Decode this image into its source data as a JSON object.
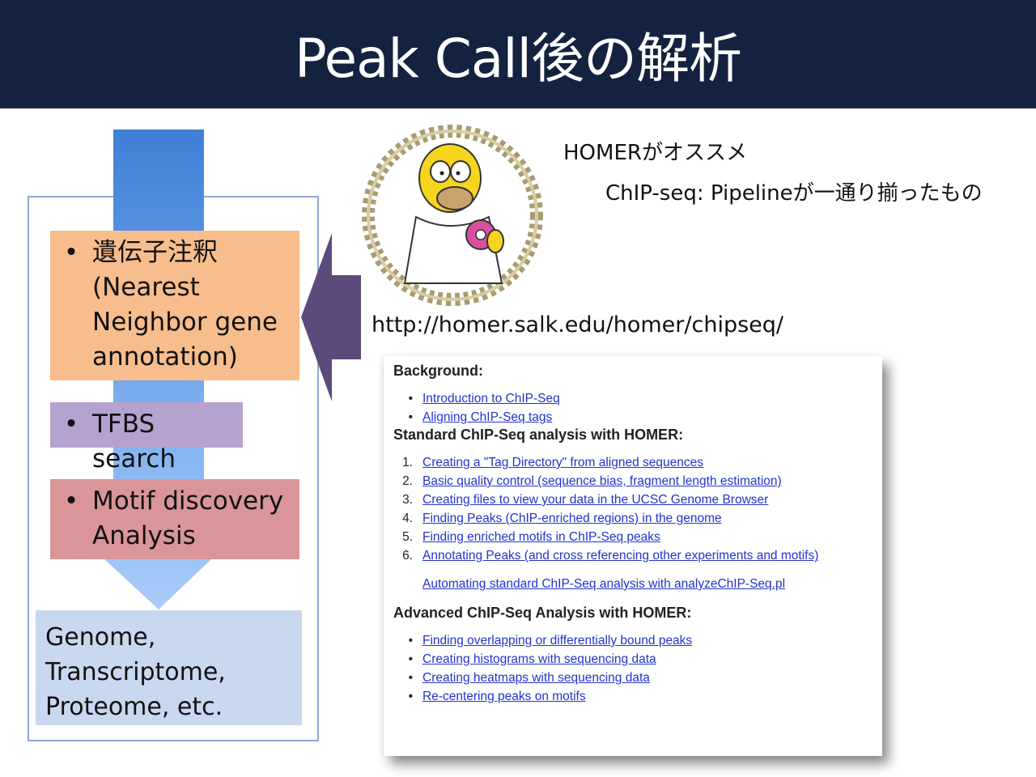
{
  "slide": {
    "title": "Peak Call後の解析"
  },
  "workflow": {
    "steps": [
      {
        "bullet": "•",
        "text": "遺伝子注釈 (Nearest Neighbor gene annotation)",
        "color": "#f8bd8d"
      },
      {
        "bullet": "•",
        "text": "TFBS search",
        "color": "#b6a2cf"
      },
      {
        "bullet": "•",
        "text": "Motif discovery Analysis",
        "color": "#d99597"
      }
    ],
    "result": "Genome, Transcriptome, Proteome, etc.",
    "colors": {
      "arrow": "#4f86d6",
      "result_bg": "#c8d8ef",
      "pointer_arrow": "#5c4a7a"
    }
  },
  "homer": {
    "logo_icon": "homer-simpson-dna-logo",
    "recommend": "HOMERがオススメ",
    "pipeline_note": "ChIP-seq: Pipelineが一通り揃ったもの",
    "url": "http://homer.salk.edu/homer/chipseq/"
  },
  "webpage": {
    "background_heading": "Background:",
    "background_links": [
      "Introduction to ChIP-Seq",
      "Aligning ChIP-Seq tags"
    ],
    "standard_heading": "Standard ChIP-Seq analysis with HOMER:",
    "standard_links": [
      {
        "num": "1.",
        "text": "Creating a \"Tag Directory\" from aligned sequences"
      },
      {
        "num": "2.",
        "text": "Basic quality control (sequence bias, fragment length estimation)"
      },
      {
        "num": "3.",
        "text": "Creating files to view your data in the UCSC Genome Browser"
      },
      {
        "num": "4.",
        "text": "Finding Peaks (ChIP-enriched regions) in the genome"
      },
      {
        "num": "5.",
        "text": "Finding enriched motifs in ChIP-Seq peaks"
      },
      {
        "num": "6.",
        "text": "Annotating Peaks (and cross referencing other experiments and motifs)"
      }
    ],
    "automating_link": "Automating standard ChIP-Seq analysis with analyzeChIP-Seq.pl",
    "advanced_heading": "Advanced ChIP-Seq Analysis with HOMER:",
    "advanced_links": [
      "Finding overlapping or differentially bound peaks",
      "Creating histograms with sequencing data",
      "Creating heatmaps with sequencing data",
      "Re-centering peaks on motifs"
    ]
  }
}
